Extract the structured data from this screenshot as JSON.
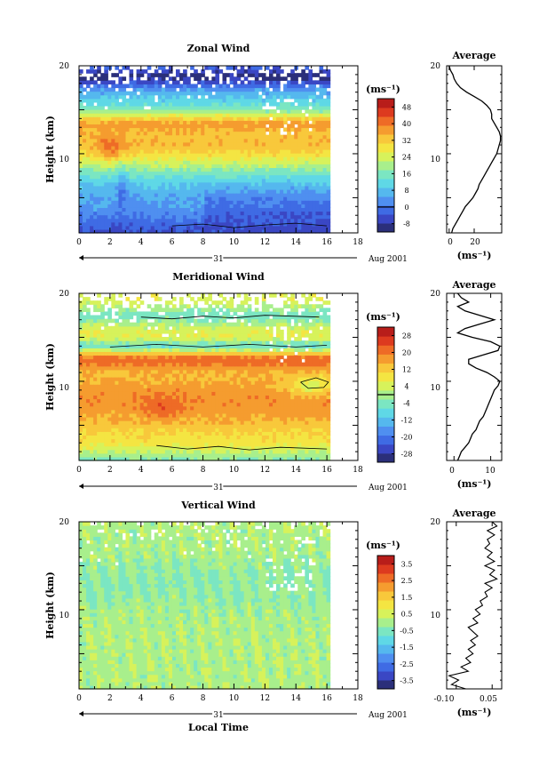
{
  "colors": {
    "colorbar": [
      "#2b2f7a",
      "#3a47c4",
      "#3f6be4",
      "#4f8ff0",
      "#55b8ee",
      "#5fd8e6",
      "#7be6c2",
      "#a8ef8c",
      "#d7f25b",
      "#f4e542",
      "#f8c83b",
      "#f59c2f",
      "#ee6b26",
      "#dd3a1f",
      "#b81d1a"
    ],
    "line": "#000000",
    "background": "#ffffff"
  },
  "xaxis": {
    "ticks": [
      "0",
      "2",
      "4",
      "6",
      "8",
      "10",
      "12",
      "14",
      "16",
      "18"
    ],
    "day": "31",
    "month": "Aug 2001",
    "label": "Local Time"
  },
  "chart_data": [
    {
      "type": "heatmap",
      "title": "Zonal Wind",
      "ylabel": "Height (km)",
      "yticks": [
        "20",
        "10"
      ],
      "xlim": [
        0,
        18
      ],
      "ylim": [
        1,
        20
      ],
      "data_xlim": [
        0,
        16.2
      ],
      "unit": "(ms⁻¹)",
      "colorbar": {
        "ticks": [
          "48",
          "40",
          "32",
          "24",
          "16",
          "8",
          "0",
          "-8"
        ],
        "range": [
          -12,
          52
        ],
        "zero_line": 0
      },
      "profile_levels_km": [
        1.0,
        1.5,
        2.0,
        2.5,
        3.0,
        3.5,
        4.0,
        4.5,
        5.0,
        5.5,
        6.0,
        6.5,
        7.0,
        7.5,
        8.0,
        8.5,
        9.0,
        9.5,
        10.0,
        10.5,
        11.0,
        11.5,
        12.0,
        12.5,
        13.0,
        13.5,
        14.0,
        14.5,
        15.0,
        15.5,
        16.0,
        16.5,
        17.0,
        17.5,
        18.0,
        18.5,
        19.0,
        19.5,
        20.0
      ]
    },
    {
      "type": "line",
      "title": "Average",
      "xlabel": "(ms⁻¹)",
      "xticks": [
        "0",
        "20"
      ],
      "yticks": [
        "20",
        "10"
      ],
      "xlim": [
        -2,
        42
      ],
      "ylim": [
        1,
        20
      ],
      "x": [
        2,
        3,
        5,
        7,
        9,
        11,
        13,
        16,
        19,
        21,
        23,
        24,
        26,
        28,
        30,
        32,
        34,
        36,
        38,
        39,
        40,
        41,
        41,
        40,
        38,
        36,
        34,
        34,
        33,
        30,
        26,
        20,
        14,
        9,
        6,
        4,
        3,
        1,
        0
      ],
      "y": [
        1.0,
        1.5,
        2.0,
        2.5,
        3.0,
        3.5,
        4.0,
        4.5,
        5.0,
        5.5,
        6.0,
        6.5,
        7.0,
        7.5,
        8.0,
        8.5,
        9.0,
        9.5,
        10.0,
        10.5,
        11.0,
        11.5,
        12.0,
        12.5,
        13.0,
        13.5,
        14.0,
        14.5,
        15.0,
        15.5,
        16.0,
        16.5,
        17.0,
        17.5,
        18.0,
        18.5,
        19.0,
        19.5,
        20.0
      ]
    },
    {
      "type": "heatmap",
      "title": "Meridional Wind",
      "ylabel": "Height (km)",
      "yticks": [
        "20",
        "10"
      ],
      "xlim": [
        0,
        18
      ],
      "ylim": [
        1,
        20
      ],
      "data_xlim": [
        0,
        16.2
      ],
      "unit": "(ms⁻¹)",
      "colorbar": {
        "ticks": [
          "28",
          "20",
          "12",
          "4",
          "-4",
          "-12",
          "-20",
          "-28"
        ],
        "range": [
          -32,
          32
        ],
        "zero_line": 0
      }
    },
    {
      "type": "line",
      "title": "Average",
      "xlabel": "(ms⁻¹)",
      "xticks": [
        "0",
        "10"
      ],
      "yticks": [
        "20",
        "10"
      ],
      "xlim": [
        -2,
        13
      ],
      "ylim": [
        1,
        20
      ],
      "x": [
        1,
        1.5,
        2,
        3,
        4,
        4.5,
        5,
        6,
        6.5,
        7,
        8,
        8.5,
        9,
        9.5,
        10,
        10.5,
        11,
        12,
        12.5,
        11,
        9,
        6,
        4,
        4,
        8,
        12,
        12.5,
        10,
        5,
        1,
        3,
        7,
        11,
        7,
        3,
        1,
        4,
        2,
        1
      ],
      "y": [
        1.0,
        1.5,
        2.0,
        2.5,
        3.0,
        3.5,
        4.0,
        4.5,
        5.0,
        5.5,
        6.0,
        6.5,
        7.0,
        7.5,
        8.0,
        8.5,
        9.0,
        9.5,
        10.0,
        10.5,
        11.0,
        11.5,
        12.0,
        12.5,
        13.0,
        13.5,
        14.0,
        14.5,
        15.0,
        15.5,
        16.0,
        16.5,
        17.0,
        17.5,
        18.0,
        18.5,
        19.0,
        19.5,
        20.0
      ]
    },
    {
      "type": "heatmap",
      "title": "Vertical Wind",
      "ylabel": "Height (km)",
      "yticks": [
        "20",
        "10"
      ],
      "xlim": [
        0,
        18
      ],
      "ylim": [
        1,
        20
      ],
      "data_xlim": [
        0,
        16.2
      ],
      "unit": "(ms⁻¹)",
      "colorbar": {
        "ticks": [
          "3.5",
          "2.5",
          "1.5",
          "0.5",
          "-0.5",
          "-1.5",
          "-2.5",
          "-3.5"
        ],
        "range": [
          -4,
          4
        ]
      }
    },
    {
      "type": "line",
      "title": "Average",
      "xlabel": "(ms⁻¹)",
      "xticks": [
        "-0.10",
        "0.05"
      ],
      "yticks": [
        "20",
        "10"
      ],
      "xlim": [
        -0.14,
        0.09
      ],
      "ylim": [
        1,
        20
      ],
      "x": [
        -0.06,
        -0.12,
        -0.09,
        -0.13,
        -0.05,
        -0.08,
        -0.04,
        -0.06,
        -0.03,
        -0.05,
        -0.02,
        -0.04,
        -0.01,
        -0.03,
        -0.05,
        -0.01,
        -0.03,
        0.0,
        -0.02,
        0.01,
        0.0,
        0.03,
        0.02,
        0.05,
        0.02,
        0.07,
        0.04,
        0.06,
        0.02,
        0.06,
        0.03,
        0.05,
        0.02,
        0.04,
        0.03,
        0.06,
        0.03,
        0.07,
        0.05
      ],
      "y": [
        1.0,
        1.5,
        2.0,
        2.5,
        3.0,
        3.5,
        4.0,
        4.5,
        5.0,
        5.5,
        6.0,
        6.5,
        7.0,
        7.5,
        8.0,
        8.5,
        9.0,
        9.5,
        10.0,
        10.5,
        11.0,
        11.5,
        12.0,
        12.5,
        13.0,
        13.5,
        14.0,
        14.5,
        15.0,
        15.5,
        16.0,
        16.5,
        17.0,
        17.5,
        18.0,
        18.5,
        19.0,
        19.5,
        20.0
      ]
    }
  ]
}
